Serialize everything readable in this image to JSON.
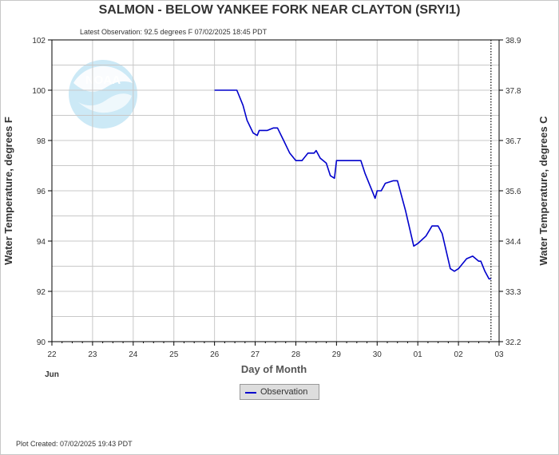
{
  "header": {
    "title": "SALMON - BELOW YANKEE FORK NEAR CLAYTON  (SRYI1)",
    "latest_observation": "Latest Observation: 92.5 degrees F 07/02/2025 18:45 PDT"
  },
  "footer": {
    "plot_created": "Plot Created: 07/02/2025 19:43 PDT"
  },
  "legend": {
    "observation_label": "Observation"
  },
  "colors": {
    "series": "#0000cc",
    "grid": "#c8c8c8",
    "axis": "#000000",
    "text": "#333333"
  },
  "chart_data": {
    "type": "line",
    "title": "SALMON - BELOW YANKEE FORK NEAR CLAYTON  (SRYI1)",
    "xlabel": "Day of Month",
    "ylabel": "Water Temperature, degrees F",
    "ylabel_right": "Water Temperature, degrees C",
    "x_tick_labels": [
      "22",
      "23",
      "24",
      "25",
      "26",
      "27",
      "28",
      "29",
      "30",
      "01",
      "02",
      "03"
    ],
    "x_month_label": "Jun",
    "xlim": [
      22,
      33
    ],
    "ylim": [
      90,
      102
    ],
    "y_ticks": [
      "90",
      "92",
      "94",
      "96",
      "98",
      "100",
      "102"
    ],
    "y_right_ticks": [
      "32.2",
      "33.3",
      "34.4",
      "35.6",
      "36.7",
      "37.8",
      "38.9"
    ],
    "grid": true,
    "legend_position": "bottom-center",
    "marker_line_x": 32.8,
    "series": [
      {
        "name": "Observation",
        "x": [
          26.0,
          26.55,
          26.7,
          26.8,
          26.95,
          27.05,
          27.1,
          27.3,
          27.45,
          27.5,
          27.55,
          27.7,
          27.85,
          28.0,
          28.15,
          28.3,
          28.45,
          28.5,
          28.6,
          28.75,
          28.85,
          28.95,
          29.0,
          29.2,
          29.5,
          29.6,
          29.7,
          29.8,
          29.9,
          29.95,
          30.0,
          30.1,
          30.2,
          30.4,
          30.5,
          30.6,
          30.7,
          30.8,
          30.9,
          31.0,
          31.2,
          31.35,
          31.5,
          31.6,
          31.7,
          31.8,
          31.9,
          32.0,
          32.1,
          32.2,
          32.35,
          32.5,
          32.55,
          32.65,
          32.75,
          32.8
        ],
        "values": [
          100.0,
          100.0,
          99.4,
          98.8,
          98.3,
          98.2,
          98.4,
          98.4,
          98.5,
          98.5,
          98.5,
          98.0,
          97.5,
          97.2,
          97.2,
          97.5,
          97.5,
          97.6,
          97.3,
          97.1,
          96.6,
          96.5,
          97.2,
          97.2,
          97.2,
          97.2,
          96.7,
          96.3,
          95.9,
          95.7,
          96.0,
          96.0,
          96.3,
          96.4,
          96.4,
          95.8,
          95.2,
          94.5,
          93.8,
          93.9,
          94.2,
          94.6,
          94.6,
          94.3,
          93.6,
          92.9,
          92.8,
          92.9,
          93.1,
          93.3,
          93.4,
          93.2,
          93.2,
          92.8,
          92.5,
          92.5
        ]
      }
    ]
  }
}
